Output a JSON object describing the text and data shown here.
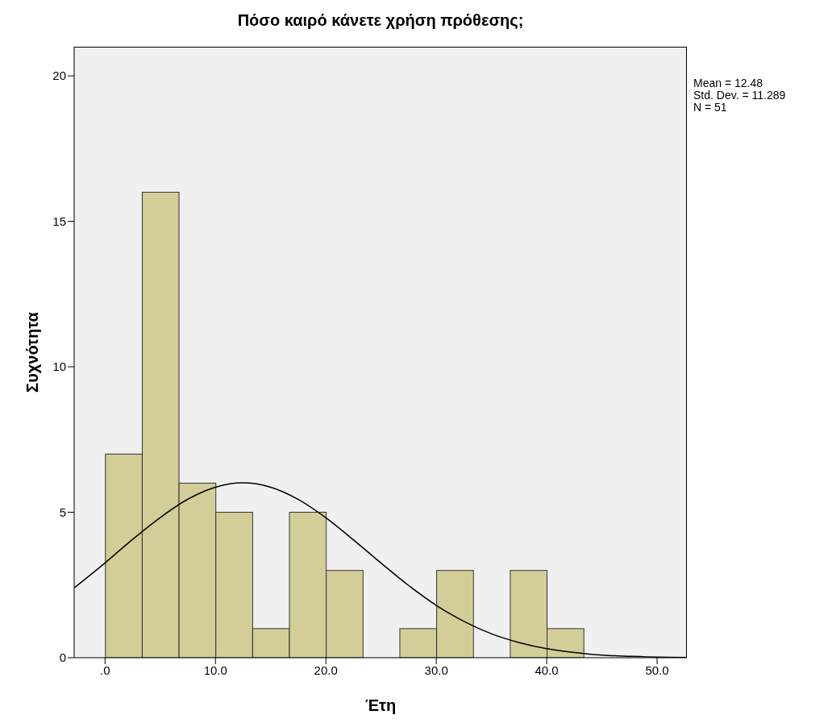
{
  "chart_data": {
    "type": "histogram",
    "title": "Πόσο καιρό κάνετε χρήση πρόθεσης;",
    "xlabel": "Έτη",
    "ylabel": "Συχνότητα",
    "bins": [
      0,
      3.333,
      6.667,
      10,
      13.333,
      16.667,
      20,
      23.333,
      26.667,
      30,
      33.333,
      36.667,
      40,
      43.333
    ],
    "values": [
      7,
      16,
      6,
      5,
      1,
      5,
      3,
      0,
      1,
      3,
      0,
      3,
      1
    ],
    "color": "#d3ce97",
    "series": [
      {
        "type": "line",
        "color": "#000000",
        "x": [
          -2.8,
          0,
          2.5,
          5,
          7.5,
          10,
          12.48,
          15,
          17.5,
          20,
          22.5,
          25,
          27.5,
          30,
          32.5,
          35,
          37.5,
          40,
          42.5,
          45,
          47.5,
          50,
          52.7
        ],
        "values": [
          2.4,
          3.26,
          4.07,
          4.82,
          5.45,
          5.86,
          6.01,
          5.86,
          5.44,
          4.81,
          4.05,
          3.25,
          2.48,
          1.8,
          1.25,
          0.82,
          0.52,
          0.31,
          0.18,
          0.09,
          0.05,
          0.02,
          0.01
        ]
      }
    ],
    "marker": "none",
    "xlim": [
      -2.8,
      52.7
    ],
    "ylim": [
      0,
      21
    ],
    "xticks": [
      {
        "value": 0,
        "label": ".0"
      },
      {
        "value": 10,
        "label": "10.0"
      },
      {
        "value": 20,
        "label": "20.0"
      },
      {
        "value": 30,
        "label": "30.0"
      },
      {
        "value": 40,
        "label": "40.0"
      },
      {
        "value": 50,
        "label": "50.0"
      }
    ],
    "yticks": [
      0,
      5,
      10,
      15,
      20
    ],
    "annotations": [
      "Mean = 12.48",
      "Std. Dev. = 11.289",
      "N = 51"
    ]
  }
}
